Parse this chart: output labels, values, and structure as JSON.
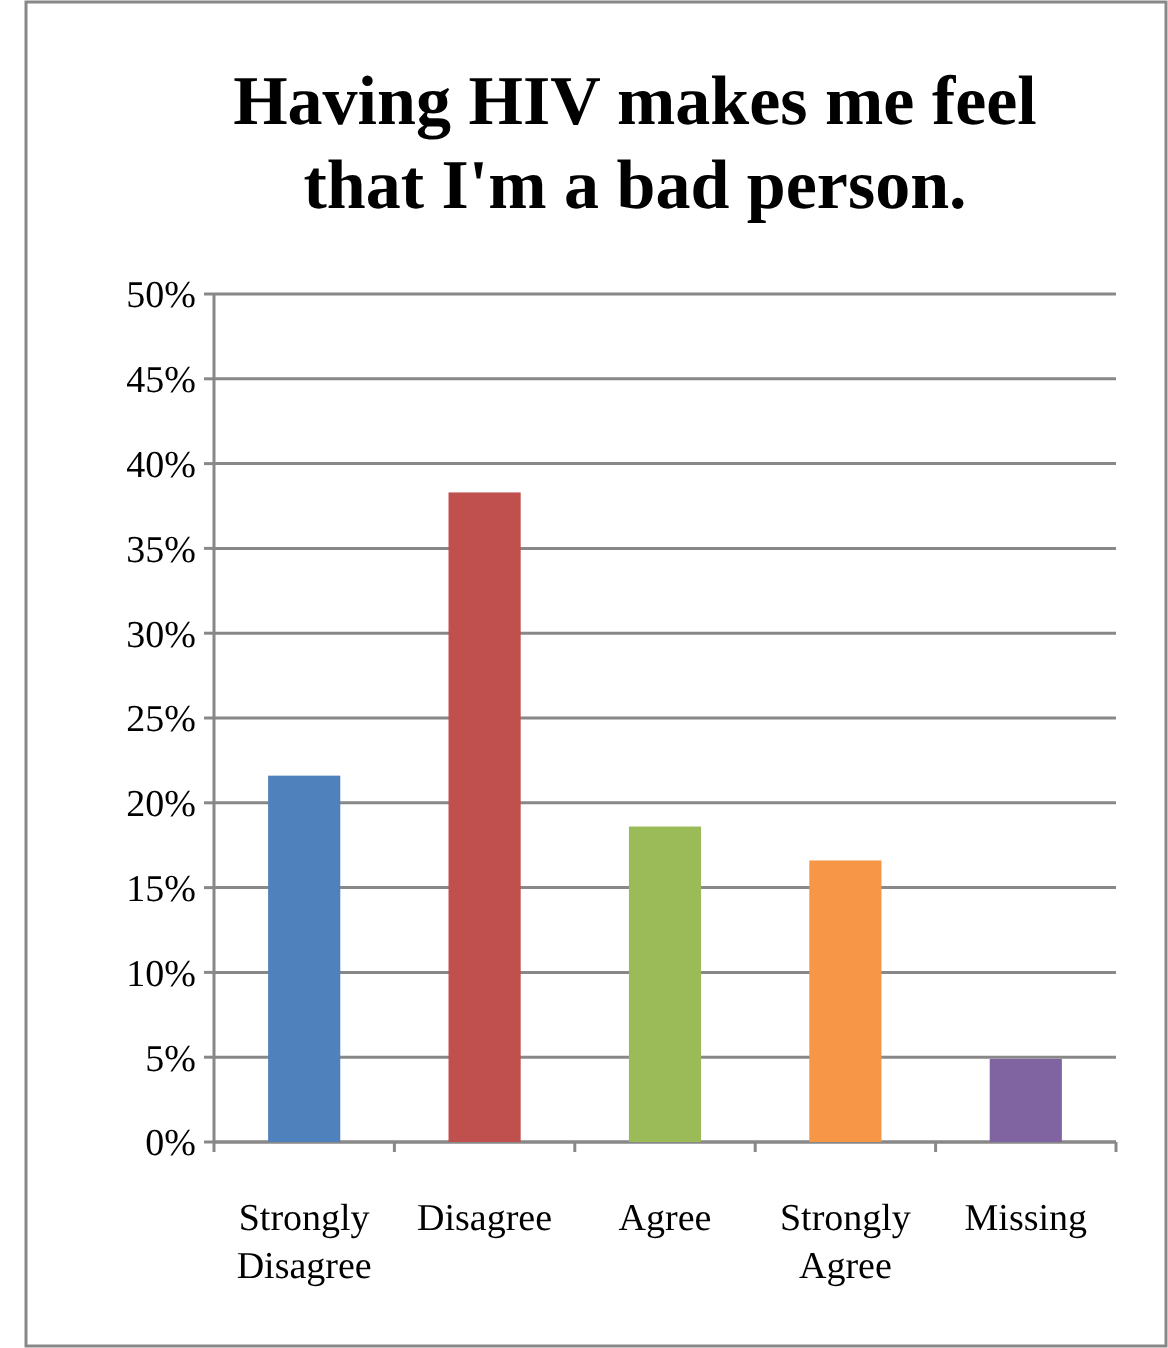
{
  "chart_data": {
    "type": "bar",
    "title": "Having HIV makes me feel that I'm a bad person.",
    "categories": [
      "Strongly Disagree",
      "Disagree",
      "Agree",
      "Strongly Agree",
      "Missing"
    ],
    "values": [
      21.6,
      38.3,
      18.6,
      16.6,
      4.9
    ],
    "colors": [
      "#4f81bd",
      "#c0504d",
      "#9bbb59",
      "#f79646",
      "#8064a2"
    ],
    "ylim": [
      0,
      50
    ],
    "yticks": [
      {
        "value": 0,
        "label": "0%"
      },
      {
        "value": 5,
        "label": "5%"
      },
      {
        "value": 10,
        "label": "10%"
      },
      {
        "value": 15,
        "label": "15%"
      },
      {
        "value": 20,
        "label": "20%"
      },
      {
        "value": 25,
        "label": "25%"
      },
      {
        "value": 30,
        "label": "30%"
      },
      {
        "value": 35,
        "label": "35%"
      },
      {
        "value": 40,
        "label": "40%"
      },
      {
        "value": 45,
        "label": "45%"
      },
      {
        "value": 50,
        "label": "50%"
      }
    ],
    "grid": "y"
  }
}
